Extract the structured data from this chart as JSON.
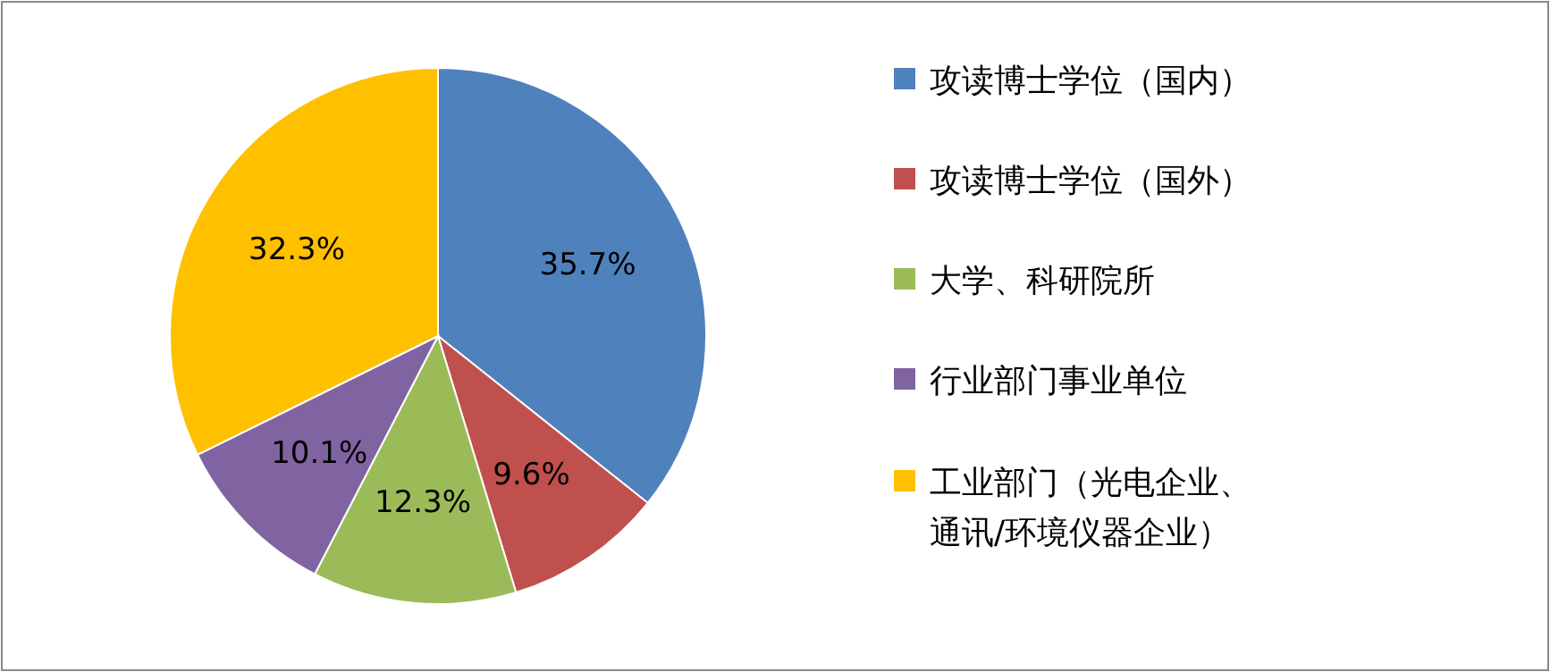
{
  "chart_data": {
    "type": "pie",
    "categories": [
      "攻读博士学位（国内）",
      "攻读博士学位（国外）",
      "大学、科研院所",
      "行业部门事业单位",
      "工业部门（光电企业、通讯/环境仪器企业）"
    ],
    "values": [
      35.7,
      9.6,
      12.3,
      10.1,
      32.3
    ],
    "colors": [
      "#4f81bd",
      "#c0504d",
      "#9bbb59",
      "#8064a2",
      "#ffc000"
    ],
    "value_labels": [
      "35.7%",
      "9.6%",
      "12.3%",
      "10.1%",
      "32.3%"
    ],
    "legend": "right"
  }
}
